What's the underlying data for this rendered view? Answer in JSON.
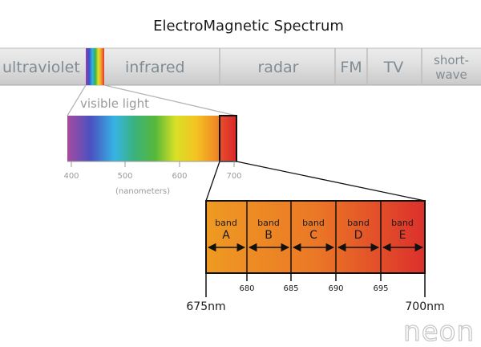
{
  "title": "ElectroMagnetic Spectrum",
  "em_bands": [
    {
      "label": "ultraviolet"
    },
    {
      "label": "infrared"
    },
    {
      "label": "radar"
    },
    {
      "label": "FM"
    },
    {
      "label": "TV"
    },
    {
      "label_line1": "short-",
      "label_line2": "wave"
    }
  ],
  "visible": {
    "label": "visible light",
    "ticks": [
      "400",
      "500",
      "600",
      "700"
    ],
    "unit": "(nanometers)"
  },
  "bands": [
    {
      "word": "band",
      "letter": "A"
    },
    {
      "word": "band",
      "letter": "B"
    },
    {
      "word": "band",
      "letter": "C"
    },
    {
      "word": "band",
      "letter": "D"
    },
    {
      "word": "band",
      "letter": "E"
    }
  ],
  "band_ticks": [
    "680",
    "685",
    "690",
    "695"
  ],
  "range_start": "675nm",
  "range_end": "700nm",
  "logo": "neon"
}
